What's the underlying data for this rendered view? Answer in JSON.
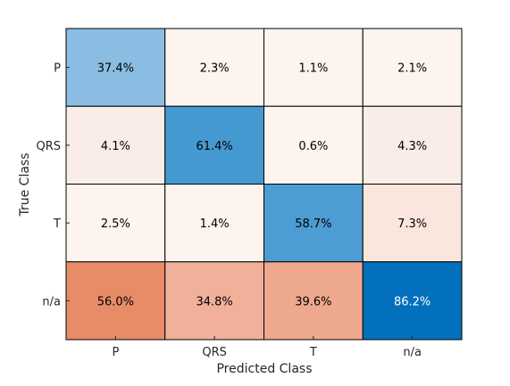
{
  "chart_data": {
    "type": "heatmap",
    "title": "",
    "xlabel": "Predicted Class",
    "ylabel": "True Class",
    "x_categories": [
      "P",
      "QRS",
      "T",
      "n/a"
    ],
    "y_categories": [
      "P",
      "QRS",
      "T",
      "n/a"
    ],
    "cells": [
      [
        {
          "value": 37.4,
          "label": "37.4%",
          "color": "#8bbde2",
          "text_color": "#000000"
        },
        {
          "value": 2.3,
          "label": "2.3%",
          "color": "#fdf3ef",
          "text_color": "#000000"
        },
        {
          "value": 1.1,
          "label": "1.1%",
          "color": "#fdf3ef",
          "text_color": "#000000"
        },
        {
          "value": 2.1,
          "label": "2.1%",
          "color": "#fdf3ef",
          "text_color": "#000000"
        }
      ],
      [
        {
          "value": 4.1,
          "label": "4.1%",
          "color": "#faece6",
          "text_color": "#000000"
        },
        {
          "value": 61.4,
          "label": "61.4%",
          "color": "#4599d1",
          "text_color": "#000000"
        },
        {
          "value": 0.6,
          "label": "0.6%",
          "color": "#fdf3ef",
          "text_color": "#000000"
        },
        {
          "value": 4.3,
          "label": "4.3%",
          "color": "#faece6",
          "text_color": "#000000"
        }
      ],
      [
        {
          "value": 2.5,
          "label": "2.5%",
          "color": "#fdf3ef",
          "text_color": "#000000"
        },
        {
          "value": 1.4,
          "label": "1.4%",
          "color": "#fdf3ef",
          "text_color": "#000000"
        },
        {
          "value": 58.7,
          "label": "58.7%",
          "color": "#4d9cd4",
          "text_color": "#000000"
        },
        {
          "value": 7.3,
          "label": "7.3%",
          "color": "#fae6dd",
          "text_color": "#000000"
        }
      ],
      [
        {
          "value": 56.0,
          "label": "56.0%",
          "color": "#e78c67",
          "text_color": "#000000"
        },
        {
          "value": 34.8,
          "label": "34.8%",
          "color": "#f1b09a",
          "text_color": "#000000"
        },
        {
          "value": 39.6,
          "label": "39.6%",
          "color": "#eea88e",
          "text_color": "#000000"
        },
        {
          "value": 86.2,
          "label": "86.2%",
          "color": "#0370bd",
          "text_color": "#ffffff"
        }
      ]
    ],
    "grid": true,
    "legend": "none"
  }
}
